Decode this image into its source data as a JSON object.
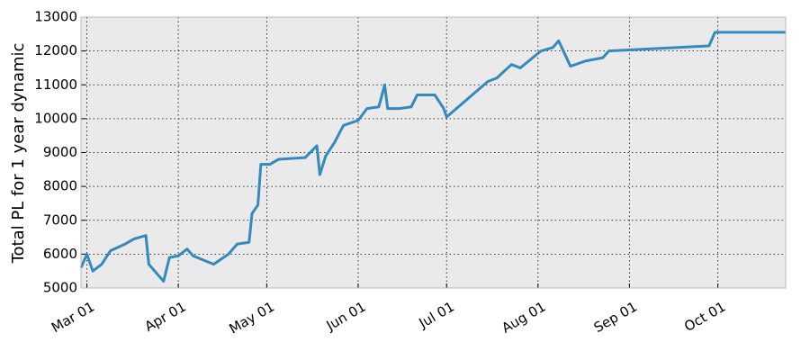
{
  "chart_data": {
    "type": "line",
    "y_label": "Total PL for 1 year dynamic",
    "x": [
      "02-27",
      "03-01",
      "03-03",
      "03-06",
      "03-09",
      "03-14",
      "03-17",
      "03-21",
      "03-22",
      "03-24",
      "03-27",
      "03-29",
      "04-01",
      "04-04",
      "04-06",
      "04-13",
      "04-18",
      "04-21",
      "04-25",
      "04-26",
      "04-28",
      "04-29",
      "05-02",
      "05-05",
      "05-14",
      "05-18",
      "05-19",
      "05-21",
      "05-24",
      "05-27",
      "06-01",
      "06-04",
      "06-08",
      "06-10",
      "06-11",
      "06-15",
      "06-19",
      "06-21",
      "06-27",
      "06-30",
      "07-01",
      "07-15",
      "07-18",
      "07-23",
      "07-26",
      "08-02",
      "08-06",
      "08-08",
      "08-12",
      "08-17",
      "08-23",
      "08-25",
      "09-28",
      "09-30",
      "10-24"
    ],
    "series": [
      {
        "name": "Total PL",
        "color": "#348abd",
        "values": [
          5600,
          6000,
          5500,
          5700,
          6100,
          6300,
          6450,
          6550,
          5700,
          5500,
          5200,
          5900,
          5950,
          6150,
          5950,
          5700,
          6000,
          6300,
          6350,
          7200,
          7450,
          8650,
          8650,
          8800,
          8850,
          9200,
          8350,
          8900,
          9300,
          9800,
          9950,
          10300,
          10350,
          11000,
          10300,
          10300,
          10350,
          10700,
          10700,
          10300,
          10050,
          11100,
          11200,
          11600,
          11500,
          12000,
          12100,
          12300,
          11550,
          11700,
          11800,
          12000,
          12150,
          12550,
          12550
        ]
      }
    ],
    "xlim": [
      "02-27",
      "10-24"
    ],
    "xticks": [
      {
        "value": "03-01",
        "label": "Mar 01"
      },
      {
        "value": "04-01",
        "label": "Apr 01"
      },
      {
        "value": "05-01",
        "label": "May 01"
      },
      {
        "value": "06-01",
        "label": "Jun 01"
      },
      {
        "value": "07-01",
        "label": "Jul 01"
      },
      {
        "value": "08-01",
        "label": "Aug 01"
      },
      {
        "value": "09-01",
        "label": "Sep 01"
      },
      {
        "value": "10-01",
        "label": "Oct 01"
      }
    ],
    "ylim": [
      5000,
      13000
    ],
    "yticks": [
      5000,
      6000,
      7000,
      8000,
      9000,
      10000,
      11000,
      12000,
      13000
    ],
    "grid": true
  }
}
